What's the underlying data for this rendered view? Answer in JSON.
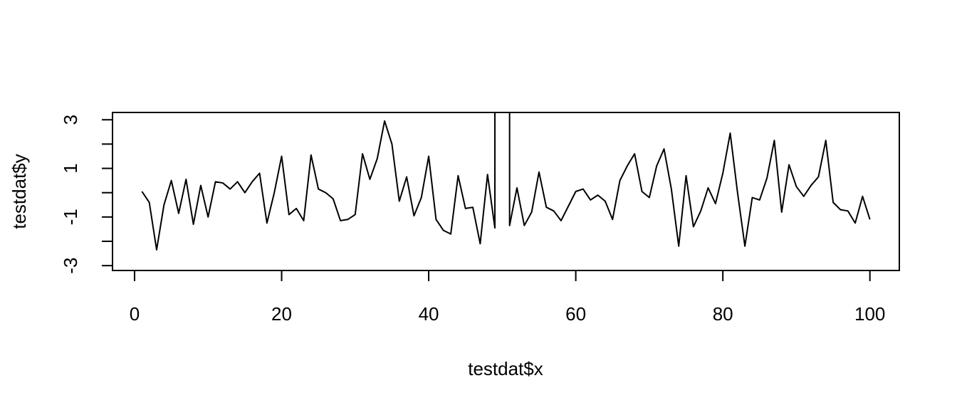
{
  "chart_data": {
    "type": "line",
    "title": "",
    "xlabel": "testdat$x",
    "ylabel": "testdat$y",
    "xlim": [
      -3,
      104
    ],
    "ylim": [
      -3.2,
      3.3
    ],
    "x_ticks": [
      0,
      20,
      40,
      60,
      80,
      100
    ],
    "y_ticks": [
      -3,
      -1,
      1,
      3
    ],
    "y_minor_ticks": [
      -2,
      0,
      2
    ],
    "grid": false,
    "line_color": "#000000",
    "x": [
      1,
      2,
      3,
      4,
      5,
      6,
      7,
      8,
      9,
      10,
      11,
      12,
      13,
      14,
      15,
      16,
      17,
      18,
      19,
      20,
      21,
      22,
      23,
      24,
      25,
      26,
      27,
      28,
      29,
      30,
      31,
      32,
      33,
      34,
      35,
      36,
      37,
      38,
      39,
      40,
      41,
      42,
      43,
      44,
      45,
      46,
      47,
      48,
      49,
      50,
      51,
      52,
      53,
      54,
      55,
      56,
      57,
      58,
      59,
      60,
      61,
      62,
      63,
      64,
      65,
      66,
      67,
      68,
      69,
      70,
      71,
      72,
      73,
      74,
      75,
      76,
      77,
      78,
      79,
      80,
      81,
      82,
      83,
      84,
      85,
      86,
      87,
      88,
      89,
      90,
      91,
      92,
      93,
      94,
      95,
      96,
      97,
      98,
      99,
      100
    ],
    "y": [
      0.05,
      -0.4,
      -2.35,
      -0.5,
      0.5,
      -0.85,
      0.55,
      -1.3,
      0.3,
      -1.0,
      0.45,
      0.4,
      0.15,
      0.45,
      0.0,
      0.45,
      0.8,
      -1.25,
      0.0,
      1.5,
      -0.9,
      -0.65,
      -1.15,
      1.55,
      0.15,
      0.0,
      -0.25,
      -1.15,
      -1.1,
      -0.9,
      1.6,
      0.55,
      1.4,
      2.95,
      2.0,
      -0.35,
      0.65,
      -0.95,
      -0.2,
      1.5,
      -1.1,
      -1.55,
      -1.7,
      0.7,
      -0.65,
      -0.6,
      -2.1,
      0.75,
      -1.45,
      null,
      -1.35,
      0.2,
      -1.35,
      -0.8,
      0.85,
      -0.6,
      -0.75,
      -1.15,
      -0.55,
      0.05,
      0.15,
      -0.3,
      -0.1,
      -0.35,
      -1.1,
      0.5,
      1.1,
      1.6,
      0.05,
      -0.2,
      1.1,
      1.8,
      0.15,
      -2.2,
      0.7,
      -1.4,
      -0.75,
      0.2,
      -0.45,
      0.8,
      2.45,
      0.0,
      -2.2,
      -0.2,
      -0.3,
      0.6,
      2.15,
      -0.8,
      1.15,
      0.25,
      -0.15,
      0.3,
      0.65,
      2.15,
      -0.4,
      -0.7,
      -0.75,
      -1.25,
      -0.15,
      -1.1
    ]
  }
}
